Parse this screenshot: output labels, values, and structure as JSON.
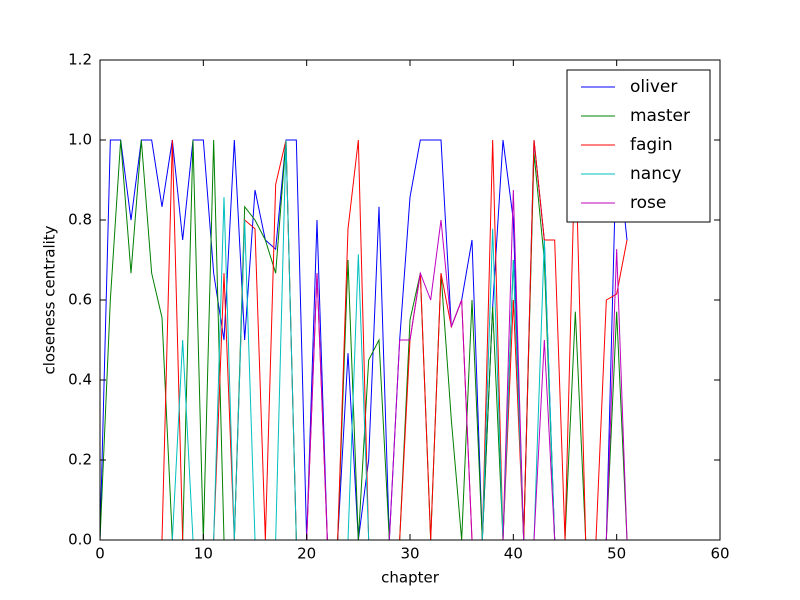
{
  "chart_data": {
    "type": "line",
    "xlabel": "chapter",
    "ylabel": "closeness centrality",
    "x": [
      0,
      1,
      2,
      3,
      4,
      5,
      6,
      7,
      8,
      9,
      10,
      11,
      12,
      13,
      14,
      15,
      16,
      17,
      18,
      19,
      20,
      21,
      22,
      23,
      24,
      25,
      26,
      27,
      28,
      29,
      30,
      31,
      32,
      33,
      34,
      35,
      36,
      37,
      38,
      39,
      40,
      41,
      42,
      43,
      44,
      45,
      46,
      47,
      48,
      49,
      50,
      51
    ],
    "series": [
      {
        "name": "oliver",
        "color": "#0000ff",
        "values": [
          0,
          1,
          1,
          0.8,
          1,
          1,
          0.833,
          1,
          0.75,
          1,
          1,
          0.667,
          0.5,
          1,
          0.5,
          0.875,
          0.75,
          0.727,
          1,
          1,
          0,
          0.8,
          0,
          0,
          0.467,
          0,
          0.2,
          0.833,
          0,
          0.5,
          0.857,
          1,
          1,
          1,
          0.533,
          0.6,
          0.75,
          0,
          0.583,
          1,
          0.8,
          0,
          1,
          0.75,
          0,
          0,
          0,
          0,
          0,
          0,
          1,
          0.75
        ]
      },
      {
        "name": "master",
        "color": "#008000",
        "values": [
          0,
          0.6,
          1,
          0.667,
          1,
          0.667,
          0.556,
          0,
          0,
          1,
          0,
          1,
          0,
          0,
          0.833,
          0.8,
          0.75,
          0.667,
          1,
          0,
          0,
          0,
          0,
          0,
          0.7,
          0,
          0.45,
          0.5,
          0,
          0,
          0.55,
          0.667,
          0,
          0.667,
          0.3,
          0,
          0.6,
          0,
          0.583,
          0,
          0.7,
          0,
          0.967,
          0.7,
          0,
          0,
          0.571,
          0,
          0,
          0,
          0.571,
          0
        ]
      },
      {
        "name": "fagin",
        "color": "#ff0000",
        "values": [
          0,
          0,
          0,
          0,
          0,
          0,
          0,
          1,
          0,
          0,
          0,
          0,
          0.667,
          0,
          0.8,
          0.778,
          0,
          0.889,
          1,
          0,
          0,
          0.667,
          0,
          0,
          0.778,
          1,
          0,
          0,
          0,
          0,
          0.5,
          0.667,
          0,
          0.667,
          0.533,
          0.6,
          0,
          0,
          1,
          0,
          0.6,
          0,
          1,
          0.75,
          0.75,
          0,
          1,
          0,
          0,
          0.6,
          0.615,
          0.75
        ]
      },
      {
        "name": "nancy",
        "color": "#00bfbf",
        "values": [
          0,
          0,
          0,
          0,
          0,
          0,
          0,
          0,
          0.5,
          0,
          0,
          0,
          0.857,
          0,
          0.8,
          0,
          0,
          0,
          1,
          0,
          0,
          0,
          0,
          0,
          0,
          0.714,
          0,
          0,
          0,
          0,
          0,
          0,
          0,
          0,
          0,
          0,
          0,
          0,
          0.778,
          0,
          0.7,
          0,
          0,
          0.75,
          0,
          0,
          0,
          0,
          0,
          0,
          0,
          0
        ]
      },
      {
        "name": "rose",
        "color": "#bf00bf",
        "values": [
          0,
          0,
          0,
          0,
          0,
          0,
          0,
          0,
          0,
          0,
          0,
          0,
          0,
          0,
          0,
          0,
          0,
          0,
          0,
          0,
          0,
          0.667,
          0,
          0,
          0,
          0,
          0,
          0,
          0,
          0.5,
          0.5,
          0.667,
          0.6,
          0.8,
          0.533,
          0.6,
          0,
          0,
          0,
          0,
          0.875,
          0,
          0,
          0.5,
          0,
          0,
          0,
          0,
          0,
          0,
          0.727,
          0
        ]
      }
    ],
    "xlim": [
      0,
      60
    ],
    "xticks": [
      0,
      10,
      20,
      30,
      40,
      50,
      60
    ],
    "ylim": [
      0,
      1.2
    ],
    "yticks": [
      {
        "value": 0,
        "label": "0.0"
      },
      0.2,
      0.4,
      0.6,
      0.8,
      {
        "value": 1,
        "label": "1.0"
      },
      1.2
    ],
    "legend": "upper right"
  }
}
